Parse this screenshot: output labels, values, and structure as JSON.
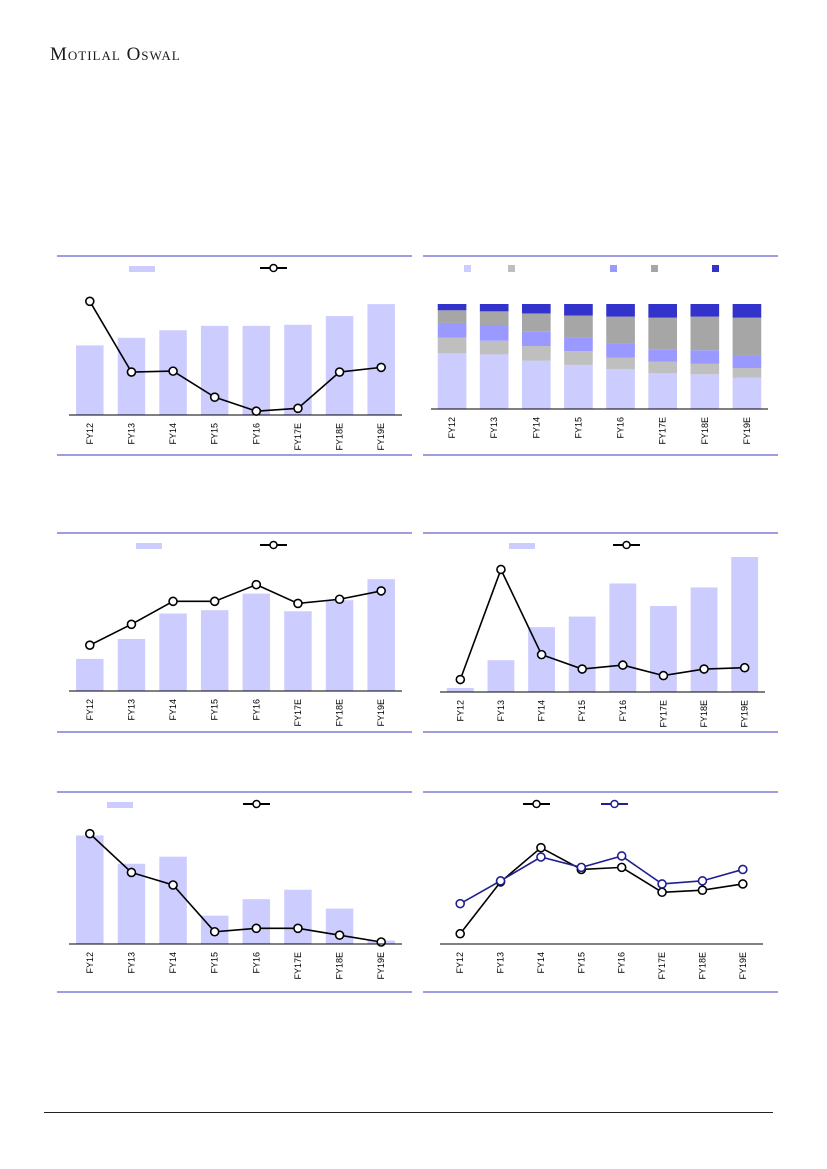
{
  "header": {
    "brand": "Motilal Oswal"
  },
  "colors": {
    "rule": "#3B3BBF",
    "bar": "#CCCCFF",
    "line": "#000000",
    "line_alt": "#1F1F8F",
    "stack": [
      "#CCCCFF",
      "#BFBFBF",
      "#9999FF",
      "#A6A6A6",
      "#3333CC"
    ]
  },
  "chart_data": [
    {
      "type": "bar",
      "categories": [
        "FY12",
        "FY13",
        "FY14",
        "FY15",
        "FY16",
        "FY17E",
        "FY18E",
        "FY19E"
      ],
      "series": [
        {
          "kind": "bar",
          "values": [
            64,
            71,
            78,
            82,
            82,
            83,
            91,
            102
          ]
        },
        {
          "kind": "line",
          "values": [
            120,
            44,
            45,
            17,
            2,
            5,
            44,
            49
          ]
        }
      ]
    },
    {
      "type": "bar",
      "stacked": true,
      "categories": [
        "FY12",
        "FY13",
        "FY14",
        "FY15",
        "FY16",
        "FY17E",
        "FY18E",
        "FY19E"
      ],
      "series": [
        {
          "values": [
            53,
            52,
            46,
            42,
            38,
            34,
            33,
            30
          ]
        },
        {
          "values": [
            15,
            13,
            14,
            13,
            11,
            11,
            10,
            9
          ]
        },
        {
          "values": [
            14,
            15,
            14,
            13,
            13,
            12,
            13,
            12
          ]
        },
        {
          "values": [
            12,
            13,
            17,
            21,
            26,
            30,
            32,
            36
          ]
        },
        {
          "values": [
            6,
            7,
            9,
            11,
            12,
            13,
            12,
            13
          ]
        }
      ]
    },
    {
      "type": "bar",
      "categories": [
        "FY12",
        "FY13",
        "FY14",
        "FY15",
        "FY16",
        "FY17E",
        "FY18E",
        "FY19E"
      ],
      "series": [
        {
          "kind": "bar",
          "values": [
            29,
            47,
            70,
            73,
            88,
            72,
            82,
            101
          ]
        },
        {
          "kind": "line",
          "values": [
            42,
            62,
            84,
            84,
            100,
            82,
            86,
            94
          ]
        }
      ]
    },
    {
      "type": "bar",
      "categories": [
        "FY12",
        "FY13",
        "FY14",
        "FY15",
        "FY16",
        "FY17E",
        "FY18E",
        "FY19E"
      ],
      "series": [
        {
          "kind": "bar",
          "values": [
            3,
            24,
            49,
            57,
            82,
            65,
            79,
            102
          ]
        },
        {
          "kind": "line",
          "values": [
            8,
            92,
            27,
            16,
            19,
            11,
            16,
            17
          ]
        }
      ]
    },
    {
      "type": "bar",
      "categories": [
        "FY12",
        "FY13",
        "FY14",
        "FY15",
        "FY16",
        "FY17E",
        "FY18E",
        "FY19E"
      ],
      "series": [
        {
          "kind": "bar",
          "values": [
            92,
            68,
            74,
            24,
            38,
            46,
            30,
            3
          ]
        },
        {
          "kind": "line",
          "values": [
            95,
            61,
            50,
            9,
            12,
            12,
            6,
            0
          ]
        }
      ]
    },
    {
      "type": "line",
      "categories": [
        "FY12",
        "FY13",
        "FY14",
        "FY15",
        "FY16",
        "FY17E",
        "FY18E",
        "FY19E"
      ],
      "series": [
        {
          "values": [
            8,
            58,
            91,
            70,
            72,
            48,
            50,
            56
          ]
        },
        {
          "values": [
            37,
            59,
            82,
            72,
            83,
            56,
            59,
            70
          ]
        }
      ]
    }
  ]
}
